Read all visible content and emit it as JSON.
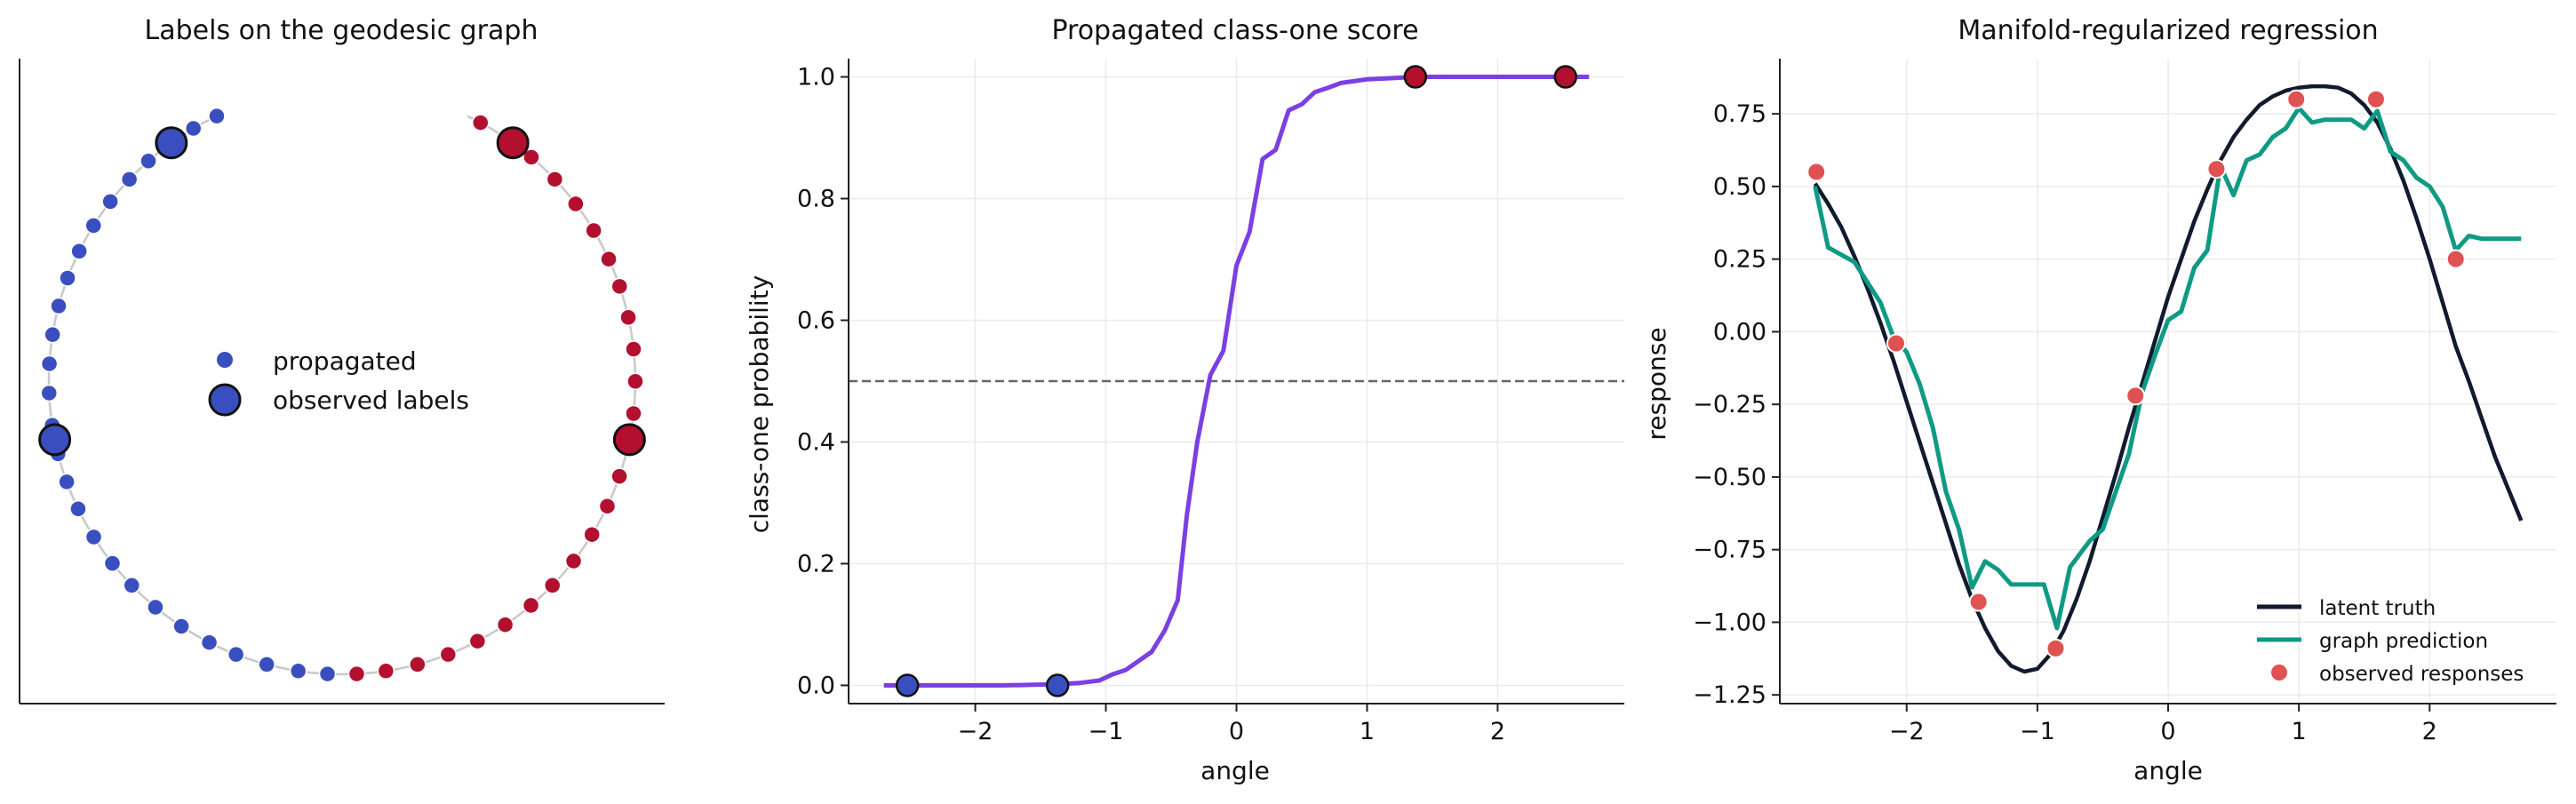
{
  "colors": {
    "class_one": "#b30f2e",
    "class_zero": "#3a4fbf",
    "circle_line": "#c8c8c8",
    "propagation_curve": "#7b3fe4",
    "threshold": "#666666",
    "latent_truth": "#111a2e",
    "graph_prediction": "#0f9a84",
    "observed_responses": "#e05252",
    "grid": "#ebebeb",
    "axis": "#222222"
  },
  "chart_data": [
    {
      "type": "scatter",
      "title": "Labels on the geodesic graph",
      "xlabel": "",
      "ylabel": "",
      "grid": false,
      "xlim": [
        -1.1,
        1.1
      ],
      "ylim": [
        -1.1,
        1.1
      ],
      "legend": {
        "position": "center",
        "entries": [
          "propagated",
          "observed labels"
        ]
      },
      "circle": {
        "angle_range": [
          -2.7,
          2.7
        ]
      },
      "propagated": [
        {
          "angle": -2.7,
          "label": 0
        },
        {
          "angle": -2.61,
          "label": 0
        },
        {
          "angle": -2.52,
          "label": 0
        },
        {
          "angle": -2.42,
          "label": 0
        },
        {
          "angle": -2.33,
          "label": 0
        },
        {
          "angle": -2.23,
          "label": 0
        },
        {
          "angle": -2.13,
          "label": 0
        },
        {
          "angle": -2.03,
          "label": 0
        },
        {
          "angle": -1.93,
          "label": 0
        },
        {
          "angle": -1.83,
          "label": 0
        },
        {
          "angle": -1.73,
          "label": 0
        },
        {
          "angle": -1.63,
          "label": 0
        },
        {
          "angle": -1.53,
          "label": 0
        },
        {
          "angle": -1.42,
          "label": 0
        },
        {
          "angle": -1.32,
          "label": 0
        },
        {
          "angle": -1.22,
          "label": 0
        },
        {
          "angle": -1.12,
          "label": 0
        },
        {
          "angle": -1.01,
          "label": 0
        },
        {
          "angle": -0.9,
          "label": 0
        },
        {
          "angle": -0.8,
          "label": 0
        },
        {
          "angle": -0.69,
          "label": 0
        },
        {
          "angle": -0.58,
          "label": 0
        },
        {
          "angle": -0.47,
          "label": 0
        },
        {
          "angle": -0.37,
          "label": 0
        },
        {
          "angle": -0.26,
          "label": 0
        },
        {
          "angle": -0.15,
          "label": 0
        },
        {
          "angle": -0.05,
          "label": 0
        },
        {
          "angle": 0.05,
          "label": 1
        },
        {
          "angle": 0.15,
          "label": 1
        },
        {
          "angle": 0.26,
          "label": 1
        },
        {
          "angle": 0.37,
          "label": 1
        },
        {
          "angle": 0.48,
          "label": 1
        },
        {
          "angle": 0.59,
          "label": 1
        },
        {
          "angle": 0.7,
          "label": 1
        },
        {
          "angle": 0.8,
          "label": 1
        },
        {
          "angle": 0.91,
          "label": 1
        },
        {
          "angle": 1.02,
          "label": 1
        },
        {
          "angle": 1.13,
          "label": 1
        },
        {
          "angle": 1.24,
          "label": 1
        },
        {
          "angle": 1.35,
          "label": 1
        },
        {
          "angle": 1.46,
          "label": 1
        },
        {
          "angle": 1.57,
          "label": 1
        },
        {
          "angle": 1.68,
          "label": 1
        },
        {
          "angle": 1.79,
          "label": 1
        },
        {
          "angle": 1.9,
          "label": 1
        },
        {
          "angle": 2.0,
          "label": 1
        },
        {
          "angle": 2.11,
          "label": 1
        },
        {
          "angle": 2.22,
          "label": 1
        },
        {
          "angle": 2.33,
          "label": 1
        },
        {
          "angle": 2.44,
          "label": 1
        },
        {
          "angle": 2.55,
          "label": 1
        },
        {
          "angle": 2.65,
          "label": 1
        }
      ],
      "observed": [
        {
          "angle": -2.52,
          "label": 0
        },
        {
          "angle": -1.37,
          "label": 0
        },
        {
          "angle": 1.37,
          "label": 1
        },
        {
          "angle": 2.52,
          "label": 1
        }
      ]
    },
    {
      "type": "line",
      "title": "Propagated class-one score",
      "xlabel": "angle",
      "ylabel": "class-one probability",
      "grid": true,
      "xlim": [
        -2.97,
        2.97
      ],
      "ylim": [
        -0.03,
        1.03
      ],
      "xticks": [
        -2,
        -1,
        0,
        1,
        2
      ],
      "xtick_labels": [
        "−2",
        "−1",
        "0",
        "1",
        "2"
      ],
      "yticks": [
        0.0,
        0.2,
        0.4,
        0.6,
        0.8,
        1.0
      ],
      "ytick_labels": [
        "0.0",
        "0.2",
        "0.4",
        "0.6",
        "0.8",
        "1.0"
      ],
      "threshold": 0.5,
      "series": [
        {
          "x": [
            -2.7,
            -2.55,
            -2.4,
            -2.2,
            -2.0,
            -1.8,
            -1.55,
            -1.37,
            -1.2,
            -1.05,
            -0.95,
            -0.85,
            -0.75,
            -0.65,
            -0.55,
            -0.45,
            -0.38,
            -0.3,
            -0.2,
            -0.1,
            0.0,
            0.1,
            0.2,
            0.3,
            0.4,
            0.5,
            0.6,
            0.7,
            0.8,
            1.0,
            1.2,
            1.37,
            1.6,
            2.0,
            2.4,
            2.7
          ],
          "y": [
            0.0,
            0.0,
            0.0,
            0.0,
            0.0,
            0.0,
            0.001,
            0.002,
            0.004,
            0.008,
            0.018,
            0.025,
            0.04,
            0.055,
            0.09,
            0.14,
            0.28,
            0.4,
            0.51,
            0.55,
            0.69,
            0.745,
            0.865,
            0.88,
            0.945,
            0.955,
            0.975,
            0.982,
            0.99,
            0.996,
            0.998,
            1.0,
            1.0,
            1.0,
            1.0,
            1.0
          ]
        }
      ],
      "observed": [
        {
          "x": -2.52,
          "y": 0.0,
          "label": 0
        },
        {
          "x": -1.37,
          "y": 0.0,
          "label": 0
        },
        {
          "x": 1.37,
          "y": 1.0,
          "label": 1
        },
        {
          "x": 2.52,
          "y": 1.0,
          "label": 1
        }
      ]
    },
    {
      "type": "line",
      "title": "Manifold-regularized regression",
      "xlabel": "angle",
      "ylabel": "response",
      "grid": true,
      "xlim": [
        -2.97,
        2.97
      ],
      "ylim": [
        -1.28,
        0.94
      ],
      "xticks": [
        -2,
        -1,
        0,
        1,
        2
      ],
      "xtick_labels": [
        "−2",
        "−1",
        "0",
        "1",
        "2"
      ],
      "yticks": [
        -1.25,
        -1.0,
        -0.75,
        -0.5,
        -0.25,
        0.0,
        0.25,
        0.5,
        0.75
      ],
      "ytick_labels": [
        "−1.25",
        "−1.00",
        "−0.75",
        "−0.50",
        "−0.25",
        "0.00",
        "0.25",
        "0.50",
        "0.75"
      ],
      "legend": {
        "position": "lower right",
        "entries": [
          "latent truth",
          "graph prediction",
          "observed responses"
        ]
      },
      "series": [
        {
          "name": "latent truth",
          "x": [
            -2.7,
            -2.6,
            -2.5,
            -2.4,
            -2.3,
            -2.2,
            -2.1,
            -2.0,
            -1.9,
            -1.8,
            -1.7,
            -1.6,
            -1.5,
            -1.4,
            -1.3,
            -1.2,
            -1.1,
            -1.0,
            -0.9,
            -0.8,
            -0.7,
            -0.6,
            -0.5,
            -0.4,
            -0.3,
            -0.2,
            -0.1,
            0.0,
            0.1,
            0.2,
            0.3,
            0.4,
            0.5,
            0.6,
            0.7,
            0.8,
            0.9,
            1.0,
            1.1,
            1.2,
            1.3,
            1.4,
            1.5,
            1.6,
            1.7,
            1.8,
            1.9,
            2.0,
            2.1,
            2.2,
            2.3,
            2.4,
            2.5,
            2.6,
            2.7
          ],
          "y": [
            0.51,
            0.44,
            0.36,
            0.26,
            0.15,
            0.03,
            -0.1,
            -0.24,
            -0.38,
            -0.52,
            -0.66,
            -0.8,
            -0.92,
            -1.02,
            -1.1,
            -1.15,
            -1.17,
            -1.16,
            -1.11,
            -1.03,
            -0.92,
            -0.79,
            -0.64,
            -0.49,
            -0.33,
            -0.18,
            -0.03,
            0.12,
            0.25,
            0.38,
            0.49,
            0.59,
            0.67,
            0.73,
            0.78,
            0.81,
            0.83,
            0.84,
            0.845,
            0.845,
            0.84,
            0.82,
            0.78,
            0.72,
            0.63,
            0.52,
            0.39,
            0.25,
            0.1,
            -0.05,
            -0.17,
            -0.3,
            -0.43,
            -0.54,
            -0.65
          ]
        },
        {
          "name": "graph prediction",
          "x": [
            -2.7,
            -2.6,
            -2.4,
            -2.2,
            -2.1,
            -2.0,
            -1.9,
            -1.8,
            -1.7,
            -1.6,
            -1.5,
            -1.4,
            -1.3,
            -1.2,
            -1.1,
            -0.95,
            -0.85,
            -0.75,
            -0.6,
            -0.5,
            -0.4,
            -0.3,
            -0.2,
            -0.1,
            0.0,
            0.1,
            0.2,
            0.3,
            0.4,
            0.5,
            0.6,
            0.7,
            0.8,
            0.9,
            1.0,
            1.1,
            1.2,
            1.3,
            1.4,
            1.5,
            1.6,
            1.7,
            1.8,
            1.9,
            2.0,
            2.1,
            2.2,
            2.3,
            2.4,
            2.5,
            2.7
          ],
          "y": [
            0.5,
            0.29,
            0.24,
            0.1,
            -0.02,
            -0.07,
            -0.18,
            -0.33,
            -0.55,
            -0.68,
            -0.88,
            -0.79,
            -0.82,
            -0.87,
            -0.87,
            -0.87,
            -1.02,
            -0.81,
            -0.72,
            -0.68,
            -0.55,
            -0.42,
            -0.21,
            -0.08,
            0.04,
            0.07,
            0.22,
            0.28,
            0.57,
            0.47,
            0.59,
            0.61,
            0.67,
            0.7,
            0.77,
            0.72,
            0.73,
            0.73,
            0.73,
            0.7,
            0.76,
            0.62,
            0.59,
            0.53,
            0.5,
            0.43,
            0.28,
            0.33,
            0.32,
            0.32,
            0.32
          ]
        }
      ],
      "observed": {
        "name": "observed responses",
        "x": [
          -2.69,
          -2.08,
          -1.45,
          -0.86,
          -0.25,
          0.37,
          0.98,
          1.59,
          2.2
        ],
        "y": [
          0.55,
          -0.04,
          -0.93,
          -1.09,
          -0.22,
          0.56,
          0.8,
          0.8,
          0.25
        ]
      }
    }
  ]
}
